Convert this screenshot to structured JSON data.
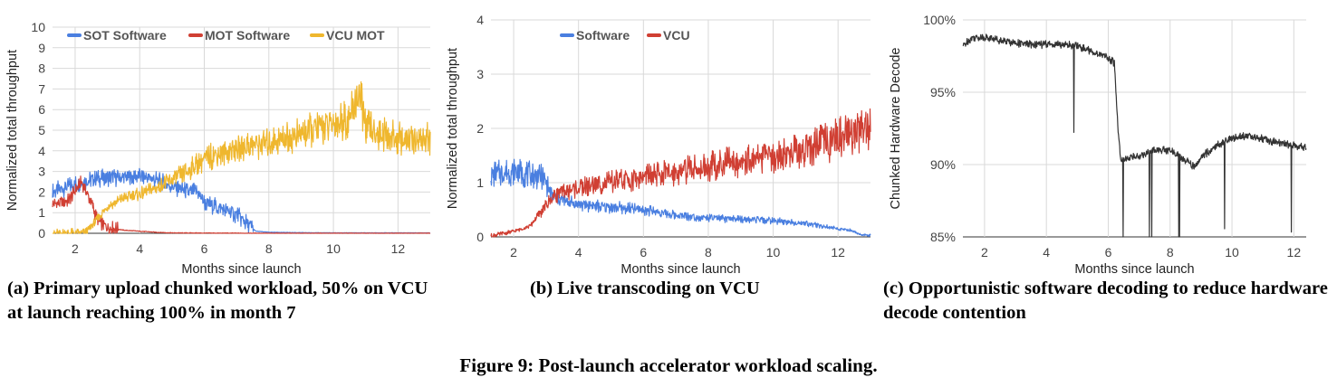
{
  "figure": {
    "caption": "Figure 9: Post-launch accelerator workload scaling."
  },
  "panels": [
    {
      "caption": "(a) Primary upload chunked workload, 50% on VCU at launch reaching 100% in month 7"
    },
    {
      "caption": "(b) Live transcoding on VCU"
    },
    {
      "caption": "(c) Opportunistic software decoding to reduce hardware decode contention"
    }
  ],
  "chart_data": [
    {
      "type": "line",
      "xlabel": "Months since launch",
      "ylabel": "Normalized total throughput",
      "xlim": [
        1.3,
        13.0
      ],
      "ylim": [
        0,
        10
      ],
      "xticks": [
        2,
        4,
        6,
        8,
        10,
        12
      ],
      "yticks": [
        0,
        1,
        2,
        3,
        4,
        5,
        6,
        7,
        8,
        9,
        10
      ],
      "legend_position": "top",
      "grid": true,
      "series": [
        {
          "name": "SOT Software",
          "color": "#4a7fe0",
          "x": [
            1.3,
            2,
            2.5,
            3,
            3.5,
            4,
            4.5,
            5,
            5.5,
            5.8,
            6.0,
            6.5,
            7.0,
            7.3,
            7.6,
            8,
            9,
            10,
            11,
            12,
            13
          ],
          "values": [
            2.0,
            2.4,
            2.6,
            2.7,
            2.7,
            2.8,
            2.6,
            2.3,
            2.0,
            2.0,
            1.5,
            1.2,
            0.9,
            0.5,
            0.1,
            0.05,
            0.03,
            0.02,
            0.02,
            0.02,
            0.02
          ]
        },
        {
          "name": "MOT Software",
          "color": "#d03f33",
          "x": [
            1.3,
            1.8,
            2.2,
            2.5,
            2.7,
            3.0,
            3.5,
            4.0,
            4.5,
            5.0,
            6,
            8,
            10,
            12,
            13
          ],
          "values": [
            1.4,
            1.6,
            2.5,
            1.5,
            0.6,
            0.3,
            0.15,
            0.1,
            0.05,
            0.02,
            0.01,
            0.0,
            0.0,
            0.0,
            0.0
          ]
        },
        {
          "name": "VCU MOT",
          "color": "#efb72e",
          "x": [
            1.3,
            2.3,
            2.6,
            3,
            3.5,
            4,
            4.5,
            5,
            5.5,
            6,
            6.5,
            7,
            7.5,
            8,
            8.5,
            9,
            9.5,
            10,
            10.5,
            10.8,
            11,
            11.5,
            12,
            12.5,
            13
          ],
          "values": [
            0,
            0,
            0.5,
            1.3,
            1.7,
            1.9,
            2.2,
            2.6,
            3.0,
            3.6,
            3.9,
            4.1,
            4.3,
            4.4,
            4.6,
            4.8,
            5.1,
            5.3,
            5.6,
            6.8,
            5.2,
            4.8,
            4.6,
            4.5,
            4.6
          ]
        }
      ]
    },
    {
      "type": "line",
      "xlabel": "Months since launch",
      "ylabel": "Normalized total throughput",
      "xlim": [
        1.3,
        13.0
      ],
      "ylim": [
        0,
        4
      ],
      "xticks": [
        2,
        4,
        6,
        8,
        10,
        12
      ],
      "yticks": [
        0,
        1,
        2,
        3,
        4
      ],
      "legend_position": "top",
      "grid": true,
      "series": [
        {
          "name": "Software",
          "color": "#4a7fe0",
          "x": [
            1.3,
            2,
            2.5,
            2.9,
            3.2,
            3.6,
            4,
            5,
            6,
            7,
            8,
            9,
            10,
            11,
            12,
            12.4,
            12.7,
            13
          ],
          "values": [
            1.15,
            1.2,
            1.15,
            1.1,
            0.75,
            0.65,
            0.6,
            0.55,
            0.5,
            0.4,
            0.35,
            0.32,
            0.3,
            0.25,
            0.15,
            0.12,
            0.04,
            0.03
          ]
        },
        {
          "name": "VCU",
          "color": "#d03f33",
          "x": [
            1.3,
            2,
            2.5,
            2.9,
            3.3,
            4,
            5,
            6,
            7,
            8,
            9,
            10,
            11,
            12,
            12.5,
            13
          ],
          "values": [
            0.02,
            0.1,
            0.2,
            0.5,
            0.8,
            0.9,
            1.0,
            1.1,
            1.2,
            1.3,
            1.4,
            1.5,
            1.6,
            1.8,
            1.95,
            2.0
          ]
        }
      ]
    },
    {
      "type": "line",
      "xlabel": "Months since launch",
      "ylabel": "Chunked Hardware Decode",
      "xlim": [
        1.3,
        12.4
      ],
      "ylim": [
        85,
        100
      ],
      "xticks": [
        2,
        4,
        6,
        8,
        10,
        12
      ],
      "yticks": [
        85,
        90,
        95,
        100
      ],
      "yticklabels": [
        "85%",
        "90%",
        "95%",
        "100%"
      ],
      "grid": true,
      "series": [
        {
          "color": "#333333",
          "x": [
            1.3,
            1.6,
            2,
            2.5,
            3,
            3.5,
            4,
            4.5,
            5,
            5.5,
            6,
            6.2,
            6.3,
            6.4,
            6.6,
            7,
            7.5,
            8,
            8.5,
            8.8,
            9,
            9.5,
            10,
            10.5,
            11,
            11.5,
            12,
            12.4
          ],
          "values": [
            98.2,
            98.8,
            98.8,
            98.6,
            98.4,
            98.3,
            98.3,
            98.3,
            98.2,
            97.8,
            97.4,
            97.0,
            93.0,
            90.3,
            90.4,
            90.6,
            91.0,
            91.0,
            90.3,
            89.8,
            90.5,
            91.3,
            91.8,
            92.0,
            91.8,
            91.5,
            91.3,
            91.2
          ]
        }
      ]
    }
  ]
}
